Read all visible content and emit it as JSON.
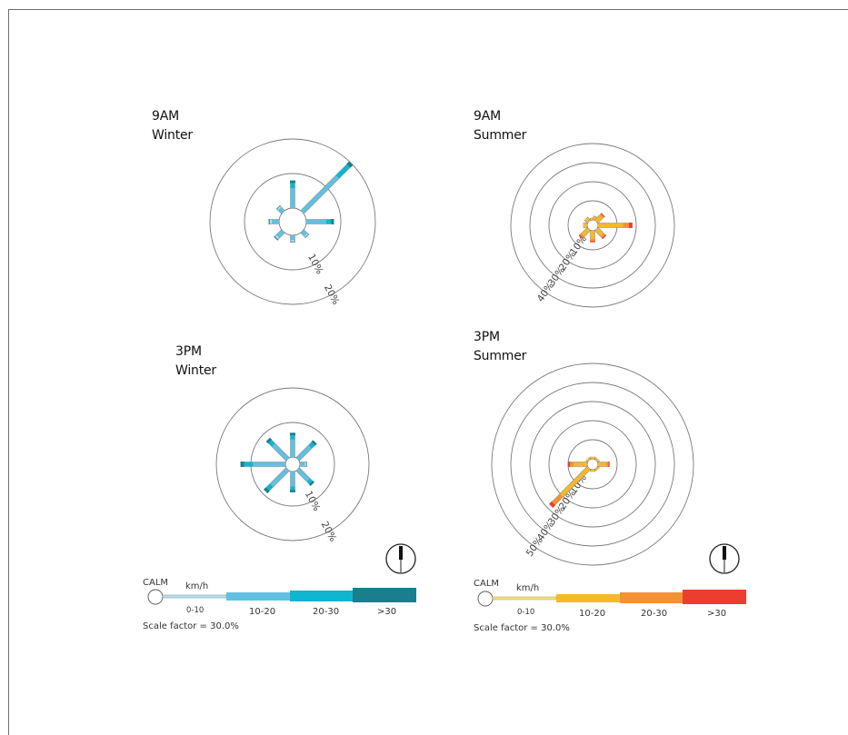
{
  "titles": {
    "winter_9am": {
      "time": "9AM",
      "season": "Winter"
    },
    "summer_9am": {
      "time": "9AM",
      "season": "Summer"
    },
    "winter_3pm": {
      "time": "3PM",
      "season": "Winter"
    },
    "summer_3pm": {
      "time": "3PM",
      "season": "Summer"
    }
  },
  "legend": {
    "calm": "CALM",
    "unit": "km/h",
    "bins": [
      "0-10",
      "10-20",
      "20-30",
      ">30"
    ],
    "scale_factor": "Scale factor = 30.0%"
  },
  "colors": {
    "winter": [
      "#bfe3ee",
      "#62c0e0",
      "#10b6cf",
      "#1a7f8c"
    ],
    "summer": [
      "#f3e08a",
      "#f7b928",
      "#f39233",
      "#ec3e2f"
    ]
  },
  "chart_data": [
    {
      "id": "winter_9am",
      "type": "wind-rose",
      "title": "9AM Winter",
      "ring_labels": [
        "10%",
        "20%"
      ],
      "petals": [
        {
          "direction": "N",
          "percent": 8
        },
        {
          "direction": "NE",
          "percent": 20
        },
        {
          "direction": "E",
          "percent": 8
        },
        {
          "direction": "SE",
          "percent": 2
        },
        {
          "direction": "S",
          "percent": 2
        },
        {
          "direction": "SW",
          "percent": 3
        },
        {
          "direction": "W",
          "percent": 3
        },
        {
          "direction": "NW",
          "percent": 2
        }
      ]
    },
    {
      "id": "summer_9am",
      "type": "wind-rose",
      "title": "9AM Summer",
      "ring_labels": [
        "10%",
        "20%",
        "30%",
        "40%"
      ],
      "petals": [
        {
          "direction": "N",
          "percent": 1
        },
        {
          "direction": "NNE",
          "percent": 2
        },
        {
          "direction": "NE",
          "percent": 5
        },
        {
          "direction": "E",
          "percent": 18
        },
        {
          "direction": "SE",
          "percent": 6
        },
        {
          "direction": "S",
          "percent": 6
        },
        {
          "direction": "SW",
          "percent": 6
        },
        {
          "direction": "W",
          "percent": 2
        },
        {
          "direction": "NW",
          "percent": 2
        }
      ]
    },
    {
      "id": "winter_3pm",
      "type": "wind-rose",
      "title": "3PM Winter",
      "ring_labels": [
        "10%",
        "20%"
      ],
      "petals": [
        {
          "direction": "N",
          "percent": 7
        },
        {
          "direction": "NE",
          "percent": 7
        },
        {
          "direction": "E",
          "percent": 2
        },
        {
          "direction": "SE",
          "percent": 6
        },
        {
          "direction": "S",
          "percent": 6
        },
        {
          "direction": "SW",
          "percent": 9
        },
        {
          "direction": "W",
          "percent": 13
        },
        {
          "direction": "NW",
          "percent": 8
        }
      ]
    },
    {
      "id": "summer_3pm",
      "type": "wind-rose",
      "title": "3PM Summer",
      "ring_labels": [
        "10%",
        "20%",
        "30%",
        "40%",
        "50%"
      ],
      "petals": [
        {
          "direction": "N",
          "percent": 1
        },
        {
          "direction": "NE",
          "percent": 1
        },
        {
          "direction": "E",
          "percent": 6
        },
        {
          "direction": "SE",
          "percent": 1
        },
        {
          "direction": "S",
          "percent": 1
        },
        {
          "direction": "SW",
          "percent": 28
        },
        {
          "direction": "W",
          "percent": 10
        },
        {
          "direction": "NW",
          "percent": 1
        }
      ]
    }
  ]
}
